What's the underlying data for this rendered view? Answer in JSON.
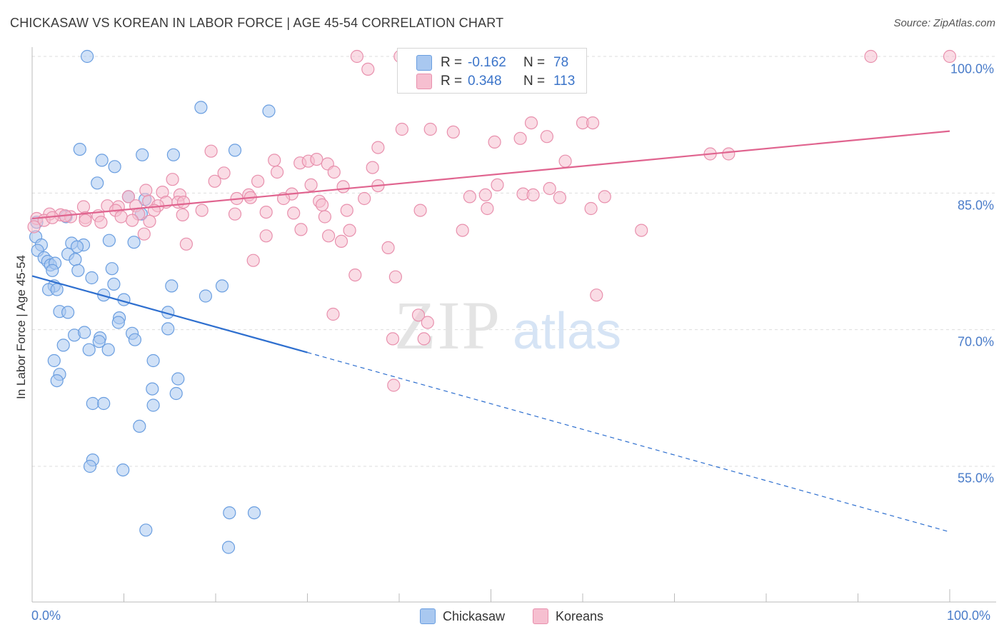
{
  "title": "CHICKASAW VS KOREAN IN LABOR FORCE | AGE 45-54 CORRELATION CHART",
  "source": "Source: ZipAtlas.com",
  "watermark": {
    "zip": "ZIP",
    "atlas": "atlas"
  },
  "legend": {
    "rows": [
      {
        "r_label": "R =",
        "r_value": "-0.162",
        "n_label": "N =",
        "n_value": "78"
      },
      {
        "r_label": "R =",
        "r_value": "0.348",
        "n_label": "N =",
        "n_value": "113"
      }
    ]
  },
  "bottom_legend": [
    "Chickasaw",
    "Koreans"
  ],
  "colors": {
    "chickasaw_fill": "#a9c8f0",
    "chickasaw_stroke": "#6a9ee0",
    "chickasaw_line": "#2e6fcf",
    "koreans_fill": "#f6bfd0",
    "koreans_stroke": "#e890ad",
    "koreans_line": "#e0648f",
    "tick_text": "#4a7cc9",
    "grid": "#dddddd"
  },
  "chart_data": {
    "type": "scatter",
    "title": "CHICKASAW VS KOREAN IN LABOR FORCE | AGE 45-54 CORRELATION CHART",
    "xlabel": "",
    "ylabel": "In Labor Force | Age 45-54",
    "xlim": [
      0,
      100
    ],
    "ylim": [
      40,
      101
    ],
    "x_tick_labels": [
      "0.0%",
      "100.0%"
    ],
    "y_ticks": [
      55,
      70,
      85,
      100
    ],
    "y_tick_labels": [
      "55.0%",
      "70.0%",
      "85.0%",
      "100.0%"
    ],
    "grid": true,
    "legend_placement": "top-center",
    "series": [
      {
        "name": "Chickasaw",
        "R": -0.162,
        "N": 78,
        "trend": {
          "x": [
            0,
            30
          ],
          "y": [
            75.9,
            67.5
          ],
          "dashed_to": [
            100,
            47.8
          ]
        },
        "points": [
          [
            6,
            100
          ],
          [
            18.4,
            94.4
          ],
          [
            25.8,
            94
          ],
          [
            5.2,
            89.8
          ],
          [
            7.6,
            88.6
          ],
          [
            12,
            89.2
          ],
          [
            15.4,
            89.2
          ],
          [
            22.1,
            89.7
          ],
          [
            9,
            87.9
          ],
          [
            7.1,
            86.1
          ],
          [
            10.5,
            84.6
          ],
          [
            12.3,
            84.3
          ],
          [
            11.9,
            82.7
          ],
          [
            3.7,
            82.4
          ],
          [
            0.5,
            81.8
          ],
          [
            0.4,
            80.2
          ],
          [
            8.4,
            79.8
          ],
          [
            11.1,
            79.6
          ],
          [
            5.6,
            79.3
          ],
          [
            4.3,
            79.5
          ],
          [
            4.9,
            79.1
          ],
          [
            1,
            79.3
          ],
          [
            0.6,
            78.7
          ],
          [
            1.3,
            77.9
          ],
          [
            3.9,
            78.3
          ],
          [
            1.7,
            77.5
          ],
          [
            4.7,
            77.7
          ],
          [
            2,
            77.1
          ],
          [
            2.5,
            77.3
          ],
          [
            2.2,
            76.5
          ],
          [
            5,
            76.5
          ],
          [
            8.7,
            76.7
          ],
          [
            6.5,
            75.7
          ],
          [
            8.9,
            75
          ],
          [
            15.2,
            74.8
          ],
          [
            20.7,
            74.8
          ],
          [
            2.4,
            74.8
          ],
          [
            1.8,
            74.4
          ],
          [
            2.7,
            74.4
          ],
          [
            7.8,
            73.8
          ],
          [
            18.9,
            73.7
          ],
          [
            10,
            73.3
          ],
          [
            3,
            72
          ],
          [
            3.9,
            71.9
          ],
          [
            14.8,
            71.9
          ],
          [
            9.5,
            71.3
          ],
          [
            9.4,
            70.8
          ],
          [
            14.8,
            70.1
          ],
          [
            4.6,
            69.4
          ],
          [
            5.7,
            69.7
          ],
          [
            10.9,
            69.6
          ],
          [
            7.4,
            69.1
          ],
          [
            11.2,
            68.9
          ],
          [
            7.3,
            68.7
          ],
          [
            3.4,
            68.3
          ],
          [
            6.2,
            67.8
          ],
          [
            8.3,
            67.8
          ],
          [
            2.4,
            66.6
          ],
          [
            13.2,
            66.6
          ],
          [
            3,
            65.1
          ],
          [
            2.7,
            64.4
          ],
          [
            15.9,
            64.6
          ],
          [
            13.1,
            63.5
          ],
          [
            15.7,
            63
          ],
          [
            6.6,
            61.9
          ],
          [
            7.8,
            61.9
          ],
          [
            13.2,
            61.7
          ],
          [
            11.7,
            59.4
          ],
          [
            6.6,
            55.7
          ],
          [
            6.3,
            55
          ],
          [
            9.9,
            54.6
          ],
          [
            21.5,
            49.9
          ],
          [
            24.2,
            49.9
          ],
          [
            12.4,
            48
          ],
          [
            21.4,
            46.1
          ]
        ]
      },
      {
        "name": "Koreans",
        "R": 0.348,
        "N": 113,
        "trend": {
          "x": [
            0,
            100
          ],
          "y": [
            82.2,
            91.8
          ]
        },
        "points": [
          [
            35.4,
            100
          ],
          [
            40.1,
            100
          ],
          [
            91.4,
            100
          ],
          [
            100,
            100
          ],
          [
            36.6,
            98.6
          ],
          [
            40.3,
            92
          ],
          [
            43.4,
            92
          ],
          [
            45.9,
            91.7
          ],
          [
            54.4,
            92.7
          ],
          [
            56.1,
            91.2
          ],
          [
            60,
            92.7
          ],
          [
            61.1,
            92.7
          ],
          [
            50.4,
            90.6
          ],
          [
            53.2,
            91
          ],
          [
            37.7,
            90
          ],
          [
            19.5,
            89.6
          ],
          [
            26.4,
            88.6
          ],
          [
            29.2,
            88.3
          ],
          [
            30.1,
            88.5
          ],
          [
            31,
            88.7
          ],
          [
            32.2,
            88.2
          ],
          [
            37.1,
            87.8
          ],
          [
            58.1,
            88.5
          ],
          [
            73.9,
            89.3
          ],
          [
            75.9,
            89.3
          ],
          [
            26.7,
            87.3
          ],
          [
            20.9,
            87.2
          ],
          [
            32.9,
            87.3
          ],
          [
            15.3,
            86.5
          ],
          [
            19.9,
            86.3
          ],
          [
            24.6,
            86.3
          ],
          [
            30.4,
            85.9
          ],
          [
            33.9,
            85.7
          ],
          [
            37.7,
            85.8
          ],
          [
            50.7,
            85.9
          ],
          [
            56.4,
            85.5
          ],
          [
            12.4,
            85.3
          ],
          [
            14.2,
            85.1
          ],
          [
            16.1,
            84.8
          ],
          [
            23.6,
            84.8
          ],
          [
            28.3,
            84.9
          ],
          [
            10.5,
            84.6
          ],
          [
            22.3,
            84.4
          ],
          [
            23.8,
            84.5
          ],
          [
            27.4,
            84.4
          ],
          [
            36.2,
            84.4
          ],
          [
            47.7,
            84.6
          ],
          [
            49.4,
            84.8
          ],
          [
            53.5,
            84.9
          ],
          [
            54.6,
            84.8
          ],
          [
            57.5,
            84.5
          ],
          [
            62.4,
            84.6
          ],
          [
            12.7,
            84.1
          ],
          [
            14.6,
            84
          ],
          [
            15.9,
            84
          ],
          [
            16.5,
            84
          ],
          [
            31.3,
            84.1
          ],
          [
            31.6,
            83.7
          ],
          [
            5.6,
            83.5
          ],
          [
            8.2,
            83.6
          ],
          [
            9.4,
            83.5
          ],
          [
            11.3,
            83.6
          ],
          [
            13.7,
            83.6
          ],
          [
            18.5,
            83.1
          ],
          [
            25.5,
            82.9
          ],
          [
            34.3,
            83.1
          ],
          [
            42.3,
            83.1
          ],
          [
            49.6,
            83.3
          ],
          [
            60.9,
            83.3
          ],
          [
            9.1,
            83.1
          ],
          [
            1.9,
            82.7
          ],
          [
            3.1,
            82.6
          ],
          [
            4.2,
            82.4
          ],
          [
            5.8,
            82.3
          ],
          [
            7.2,
            82.5
          ],
          [
            9.7,
            82.4
          ],
          [
            11.6,
            82.7
          ],
          [
            13.3,
            83.1
          ],
          [
            16.4,
            82.6
          ],
          [
            22.1,
            82.7
          ],
          [
            28.5,
            82.8
          ],
          [
            31.9,
            82.4
          ],
          [
            0.5,
            82.2
          ],
          [
            1.3,
            82
          ],
          [
            2.2,
            82.3
          ],
          [
            3.6,
            82.5
          ],
          [
            5.8,
            82
          ],
          [
            7.5,
            81.8
          ],
          [
            10.9,
            82
          ],
          [
            12.8,
            81.9
          ],
          [
            29.3,
            81
          ],
          [
            34.6,
            80.9
          ],
          [
            46.9,
            80.9
          ],
          [
            66.4,
            80.9
          ],
          [
            12.2,
            80.5
          ],
          [
            25.5,
            80.3
          ],
          [
            32.3,
            80.3
          ],
          [
            33.7,
            79.7
          ],
          [
            16.8,
            79.4
          ],
          [
            38.8,
            79
          ],
          [
            24.1,
            77.6
          ],
          [
            35.2,
            76
          ],
          [
            39.6,
            75.8
          ],
          [
            61.5,
            73.8
          ],
          [
            32.8,
            71.7
          ],
          [
            42.1,
            71.6
          ],
          [
            43.1,
            70.8
          ],
          [
            39.3,
            69
          ],
          [
            42.7,
            69
          ],
          [
            39.4,
            63.9
          ],
          [
            0.2,
            81.3
          ]
        ]
      }
    ]
  }
}
